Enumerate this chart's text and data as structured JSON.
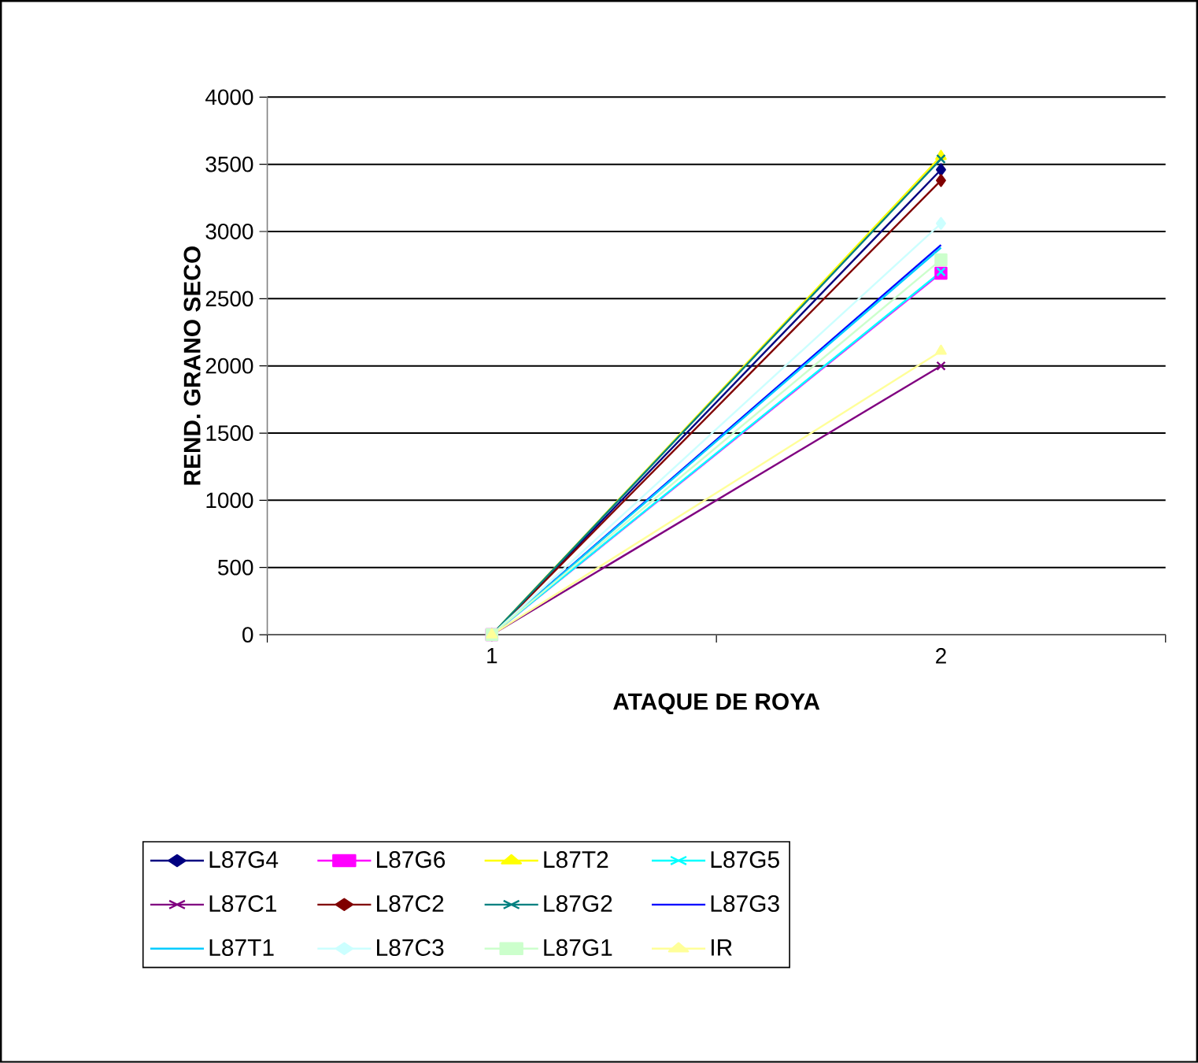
{
  "chart_data": {
    "type": "line",
    "xlabel": "ATAQUE DE ROYA",
    "ylabel": "REND. GRANO SECO",
    "categories": [
      "1",
      "2"
    ],
    "ylim": [
      0,
      4000
    ],
    "yticks": [
      0,
      500,
      1000,
      1500,
      2000,
      2500,
      3000,
      3500,
      4000
    ],
    "grid": "y",
    "legend": "bottom",
    "series": [
      {
        "name": "L87G4",
        "color": "#000080",
        "marker": "diamond",
        "values": [
          0,
          3460
        ]
      },
      {
        "name": "L87G6",
        "color": "#ff00ff",
        "marker": "square",
        "values": [
          0,
          2690
        ]
      },
      {
        "name": "L87T2",
        "color": "#ffff00",
        "marker": "triangle",
        "values": [
          0,
          3560
        ]
      },
      {
        "name": "L87G5",
        "color": "#00ffff",
        "marker": "cross",
        "values": [
          0,
          2700
        ]
      },
      {
        "name": "L87C1",
        "color": "#800080",
        "marker": "cross",
        "values": [
          0,
          2000
        ]
      },
      {
        "name": "L87C2",
        "color": "#800000",
        "marker": "diamond",
        "values": [
          0,
          3380
        ]
      },
      {
        "name": "L87G2",
        "color": "#008080",
        "marker": "cross",
        "values": [
          0,
          3540
        ]
      },
      {
        "name": "L87G3",
        "color": "#0000ff",
        "marker": "none",
        "values": [
          0,
          2900
        ]
      },
      {
        "name": "L87T1",
        "color": "#00ccff",
        "marker": "none",
        "values": [
          0,
          2880
        ]
      },
      {
        "name": "L87C3",
        "color": "#ccffff",
        "marker": "diamond",
        "values": [
          0,
          3060
        ]
      },
      {
        "name": "L87G1",
        "color": "#ccffcc",
        "marker": "square",
        "values": [
          0,
          2790
        ]
      },
      {
        "name": "IR",
        "color": "#ffff99",
        "marker": "triangle",
        "values": [
          0,
          2110
        ]
      }
    ]
  }
}
